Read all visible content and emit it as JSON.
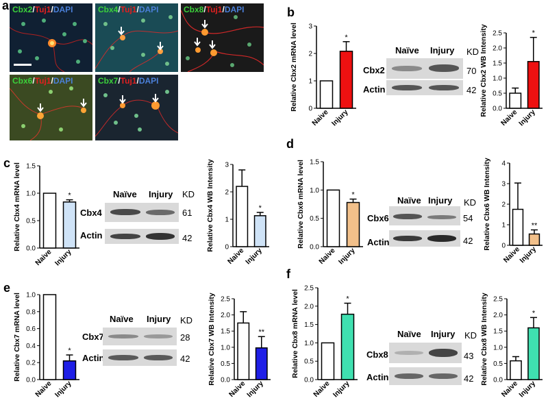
{
  "panels": {
    "a": "a",
    "b": "b",
    "c": "c",
    "d": "d",
    "e": "e",
    "f": "f"
  },
  "micrographs": [
    {
      "marker": "Cbx2",
      "sep1": "/",
      "tuj": "Tuj1",
      "sep2": "/",
      "dapi": "DAPI"
    },
    {
      "marker": "Cbx4",
      "sep1": "/",
      "tuj": "Tuj1",
      "sep2": "/",
      "dapi": "DAPI"
    },
    {
      "marker": "Cbx8",
      "sep1": "/",
      "tuj": "Tuj1",
      "sep2": "/",
      "dapi": "DAPI"
    },
    {
      "marker": "Cbx6",
      "sep1": "/",
      "tuj": "Tuj1",
      "sep2": "/",
      "dapi": "DAPI"
    },
    {
      "marker": "Cbx7",
      "sep1": "/",
      "tuj": "Tuj1",
      "sep2": "/",
      "dapi": "DAPI"
    }
  ],
  "blots": {
    "b": {
      "naive": "Naïve",
      "injury": "Injury",
      "unit": "KD",
      "protein": "Cbx2",
      "protein_kd": "70",
      "actin": "Actin",
      "actin_kd": "42"
    },
    "c": {
      "naive": "Naïve",
      "injury": "Injury",
      "unit": "KD",
      "protein": "Cbx4",
      "protein_kd": "61",
      "actin": "Actin",
      "actin_kd": "42"
    },
    "d": {
      "naive": "Naïve",
      "injury": "Injury",
      "unit": "KD",
      "protein": "Cbx6",
      "protein_kd": "54",
      "actin": "Actin",
      "actin_kd": "42"
    },
    "e": {
      "naive": "Naïve",
      "injury": "Injury",
      "unit": "KD",
      "protein": "Cbx7",
      "protein_kd": "28",
      "actin": "Actin",
      "actin_kd": "42"
    },
    "f": {
      "naive": "Naïve",
      "injury": "Injury",
      "unit": "KD",
      "protein": "Cbx8",
      "protein_kd": "43",
      "actin": "Actin",
      "actin_kd": "42"
    }
  },
  "colors": {
    "naive": "#ffffff",
    "cbx2": "#ee1111",
    "cbx4": "#cfe3f7",
    "cbx6": "#f2c08a",
    "cbx7": "#1f1fe6",
    "cbx8": "#3fe0b0"
  },
  "chart_data": [
    {
      "id": "b-mrna",
      "type": "bar",
      "categories": [
        "Naive",
        "Injury"
      ],
      "values": [
        1.0,
        2.08
      ],
      "errors": [
        0,
        0.35
      ],
      "ylabel": "Relative Cbx2 mRNA level",
      "ylim": [
        0,
        3
      ],
      "yticks": [
        "0",
        "1",
        "2",
        "3"
      ],
      "significance": [
        "",
        "*"
      ],
      "colors": [
        "#ffffff",
        "#ee1111"
      ]
    },
    {
      "id": "b-wb",
      "type": "bar",
      "categories": [
        "Naive",
        "Injury"
      ],
      "values": [
        0.5,
        1.55
      ],
      "errors": [
        0.17,
        0.8
      ],
      "ylabel": "Relative Cbx2 WB Intensity",
      "ylim": [
        0,
        2.5
      ],
      "yticks": [
        "0.0",
        "0.5",
        "1.0",
        "1.5",
        "2.0",
        "2.5"
      ],
      "significance": [
        "",
        "*"
      ],
      "colors": [
        "#ffffff",
        "#ee1111"
      ]
    },
    {
      "id": "c-mrna",
      "type": "bar",
      "categories": [
        "Naive",
        "Injury"
      ],
      "values": [
        1.0,
        0.84
      ],
      "errors": [
        0,
        0.04
      ],
      "ylabel": "Relative Cbx4 mRNA level",
      "ylim": [
        0,
        1.5
      ],
      "yticks": [
        "0.0",
        "0.5",
        "1.0",
        "1.5"
      ],
      "significance": [
        "",
        "*"
      ],
      "colors": [
        "#ffffff",
        "#cfe3f7"
      ]
    },
    {
      "id": "c-wb",
      "type": "bar",
      "categories": [
        "Naive",
        "Injury"
      ],
      "values": [
        2.2,
        1.13
      ],
      "errors": [
        0.6,
        0.12
      ],
      "ylabel": "Relative Cbx4 WB Intensity",
      "ylim": [
        0,
        3
      ],
      "yticks": [
        "0",
        "1",
        "2",
        "3"
      ],
      "significance": [
        "",
        "*"
      ],
      "colors": [
        "#ffffff",
        "#cfe3f7"
      ]
    },
    {
      "id": "d-mrna",
      "type": "bar",
      "categories": [
        "Naive",
        "Injury"
      ],
      "values": [
        1.0,
        0.78
      ],
      "errors": [
        0,
        0.06
      ],
      "ylabel": "Relative Cbx6 mRNA level",
      "ylim": [
        0,
        1.5
      ],
      "yticks": [
        "0.0",
        "0.5",
        "1.0",
        "1.5"
      ],
      "significance": [
        "",
        "*"
      ],
      "colors": [
        "#ffffff",
        "#f2c08a"
      ]
    },
    {
      "id": "d-wb",
      "type": "bar",
      "categories": [
        "Naive",
        "Injury"
      ],
      "values": [
        1.75,
        0.55
      ],
      "errors": [
        1.28,
        0.2
      ],
      "ylabel": "Relative Cbx6 WB Intensity",
      "ylim": [
        0,
        4
      ],
      "yticks": [
        "0",
        "1",
        "2",
        "3",
        "4"
      ],
      "significance": [
        "",
        "**"
      ],
      "colors": [
        "#ffffff",
        "#f2c08a"
      ]
    },
    {
      "id": "e-mrna",
      "type": "bar",
      "categories": [
        "Naive",
        "Injury"
      ],
      "values": [
        1.0,
        0.22
      ],
      "errors": [
        0,
        0.07
      ],
      "ylabel": "Relative Cbx7 mRNA level",
      "ylim": [
        0,
        1.0
      ],
      "yticks": [
        "0.0",
        "0.2",
        "0.4",
        "0.6",
        "0.8",
        "1.0"
      ],
      "significance": [
        "",
        "*"
      ],
      "colors": [
        "#ffffff",
        "#1f1fe6"
      ]
    },
    {
      "id": "e-wb",
      "type": "bar",
      "categories": [
        "Naive",
        "Injury"
      ],
      "values": [
        1.75,
        0.98
      ],
      "errors": [
        0.35,
        0.35
      ],
      "ylabel": "Relative Cbx7 WB Intensity",
      "ylim": [
        0,
        2.5
      ],
      "yticks": [
        "0.0",
        "0.5",
        "1.0",
        "1.5",
        "2.0",
        "2.5"
      ],
      "significance": [
        "",
        "**"
      ],
      "colors": [
        "#ffffff",
        "#1f1fe6"
      ]
    },
    {
      "id": "f-mrna",
      "type": "bar",
      "categories": [
        "Naive",
        "Injury"
      ],
      "values": [
        1.0,
        1.78
      ],
      "errors": [
        0,
        0.3
      ],
      "ylabel": "Relative Cbx8 mRNA level",
      "ylim": [
        0,
        2.5
      ],
      "yticks": [
        "0.0",
        "0.5",
        "1.0",
        "1.5",
        "2.0",
        "2.5"
      ],
      "significance": [
        "",
        "*"
      ],
      "colors": [
        "#ffffff",
        "#3fe0b0"
      ]
    },
    {
      "id": "f-wb",
      "type": "bar",
      "categories": [
        "Naive",
        "Injury"
      ],
      "values": [
        0.58,
        1.6
      ],
      "errors": [
        0.13,
        0.32
      ],
      "ylabel": "Relative Cbx8 WB Intensity",
      "ylim": [
        0,
        2.5
      ],
      "yticks": [
        "0.0",
        "0.5",
        "1.0",
        "1.5",
        "2.0",
        "2.5"
      ],
      "significance": [
        "",
        "*"
      ],
      "colors": [
        "#ffffff",
        "#3fe0b0"
      ]
    }
  ]
}
